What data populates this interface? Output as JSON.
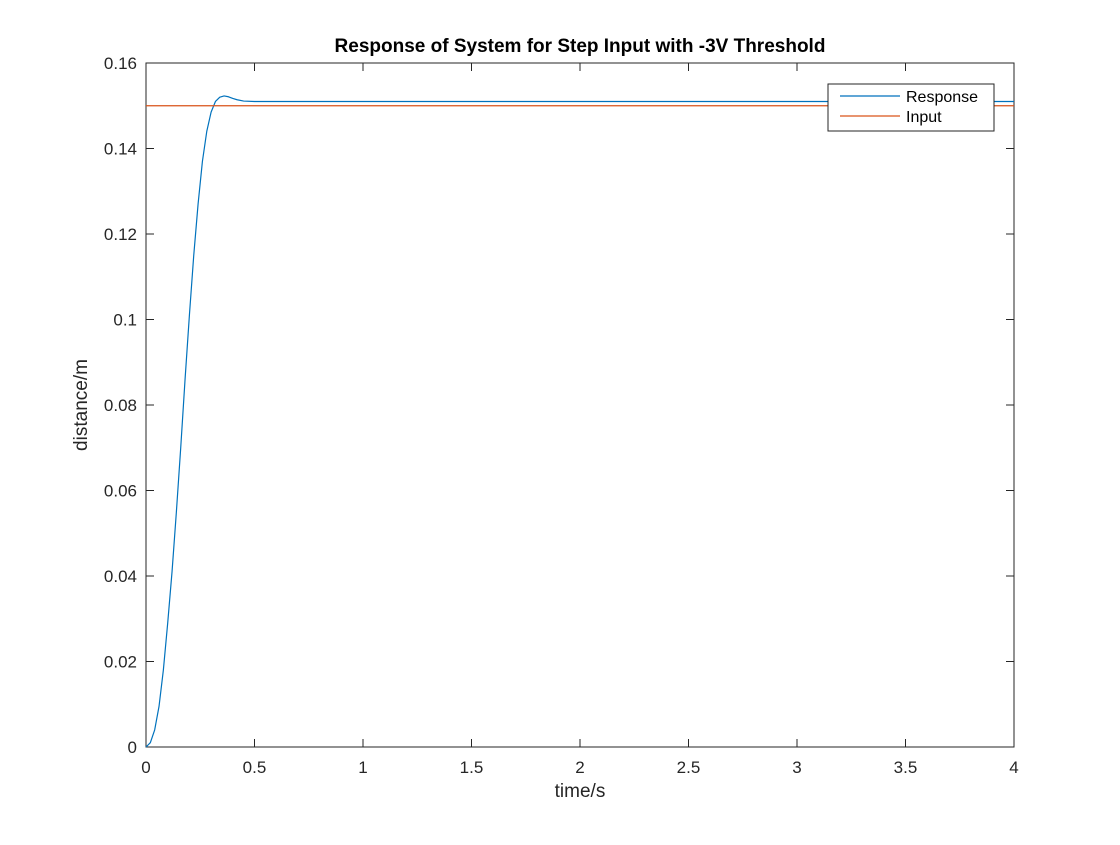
{
  "chart_data": {
    "type": "line",
    "title": "Response of System for Step Input with -3V Threshold",
    "xlabel": "time/s",
    "ylabel": "distance/m",
    "xlim": [
      0,
      4
    ],
    "ylim": [
      0,
      0.16
    ],
    "xticks": [
      0,
      0.5,
      1,
      1.5,
      2,
      2.5,
      3,
      3.5,
      4
    ],
    "xtick_labels": [
      "0",
      "0.5",
      "1",
      "1.5",
      "2",
      "2.5",
      "3",
      "3.5",
      "4"
    ],
    "yticks": [
      0,
      0.02,
      0.04,
      0.06,
      0.08,
      0.1,
      0.12,
      0.14,
      0.16
    ],
    "ytick_labels": [
      "0",
      "0.02",
      "0.04",
      "0.06",
      "0.08",
      "0.1",
      "0.12",
      "0.14",
      "0.16"
    ],
    "grid": false,
    "legend_position": "top-right",
    "series": [
      {
        "name": "Response",
        "color": "#0072bd",
        "x": [
          0,
          0.02,
          0.04,
          0.06,
          0.08,
          0.1,
          0.12,
          0.14,
          0.16,
          0.18,
          0.2,
          0.22,
          0.24,
          0.26,
          0.28,
          0.3,
          0.32,
          0.34,
          0.36,
          0.38,
          0.4,
          0.42,
          0.45,
          0.5,
          0.6,
          0.8,
          1,
          1.5,
          2,
          2.5,
          3,
          3.5,
          4
        ],
        "y": [
          0,
          0.001,
          0.004,
          0.0095,
          0.018,
          0.029,
          0.041,
          0.055,
          0.07,
          0.086,
          0.101,
          0.115,
          0.127,
          0.137,
          0.144,
          0.1485,
          0.151,
          0.152,
          0.1523,
          0.1521,
          0.1517,
          0.1514,
          0.1511,
          0.151,
          0.151,
          0.151,
          0.151,
          0.151,
          0.151,
          0.151,
          0.151,
          0.151,
          0.151
        ]
      },
      {
        "name": "Input",
        "color": "#d95319",
        "x": [
          0,
          4
        ],
        "y": [
          0.15,
          0.15
        ]
      }
    ]
  }
}
